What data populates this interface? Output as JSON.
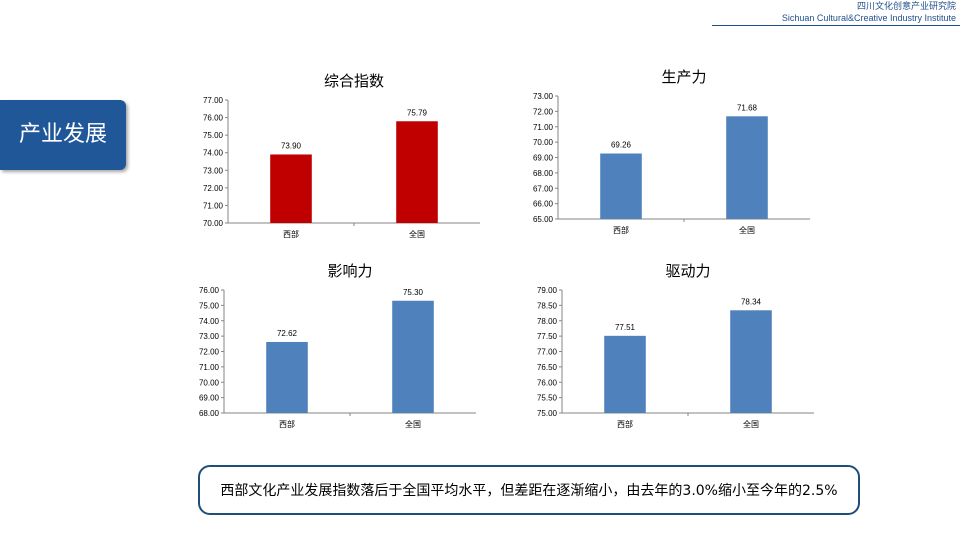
{
  "header": {
    "org_cn": "四川文化创意产业研究院",
    "org_en": "Sichuan Cultural&Creative Industry Institute"
  },
  "section": {
    "title": "产业发展"
  },
  "colors": {
    "red": "#c00000",
    "blue": "#4f81bd",
    "navy": "#1f5799"
  },
  "chart_data": [
    {
      "type": "bar",
      "title": "综合指数",
      "categories": [
        "西部",
        "全国"
      ],
      "values": [
        73.9,
        75.79
      ],
      "value_labels": [
        "73.90",
        "75.79"
      ],
      "ylim": [
        70,
        77
      ],
      "ytick_step": 1,
      "color": "#c00000"
    },
    {
      "type": "bar",
      "title": "生产力",
      "categories": [
        "西部",
        "全国"
      ],
      "values": [
        69.26,
        71.68
      ],
      "value_labels": [
        "69.26",
        "71.68"
      ],
      "ylim": [
        65,
        73
      ],
      "ytick_step": 1,
      "color": "#4f81bd"
    },
    {
      "type": "bar",
      "title": "影响力",
      "categories": [
        "西部",
        "全国"
      ],
      "values": [
        72.62,
        75.3
      ],
      "value_labels": [
        "72.62",
        "75.30"
      ],
      "ylim": [
        68,
        76
      ],
      "ytick_step": 1,
      "color": "#4f81bd"
    },
    {
      "type": "bar",
      "title": "驱动力",
      "categories": [
        "西部",
        "全国"
      ],
      "values": [
        77.51,
        78.34
      ],
      "value_labels": [
        "77.51",
        "78.34"
      ],
      "ylim": [
        75,
        79
      ],
      "ytick_step": 0.5,
      "color": "#4f81bd"
    }
  ],
  "caption": {
    "text": "西部文化产业发展指数落后于全国平均水平，但差距在逐渐缩小，由去年的3.0%缩小至今年的2.5%"
  }
}
